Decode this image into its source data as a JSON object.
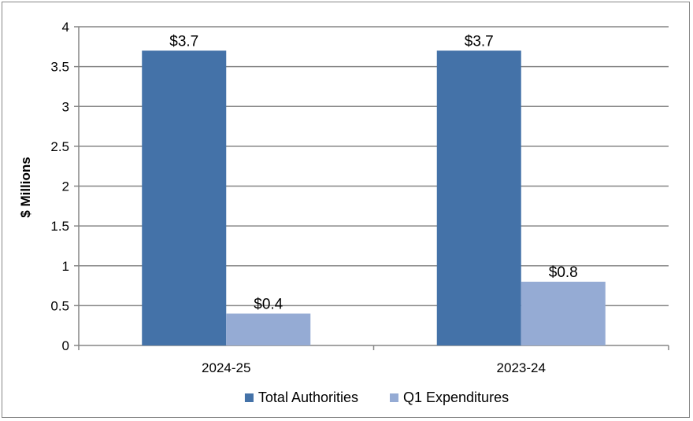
{
  "chart_data": {
    "type": "bar",
    "categories": [
      "2024-25",
      "2023-24"
    ],
    "series": [
      {
        "name": "Total Authorities",
        "values": [
          3.7,
          3.7
        ],
        "labels": [
          "$3.7",
          "$3.7"
        ],
        "color": "#4472A8"
      },
      {
        "name": "Q1 Expenditures",
        "values": [
          0.4,
          0.8
        ],
        "labels": [
          "$0.4",
          "$0.8"
        ],
        "color": "#95ABD4"
      }
    ],
    "title": "",
    "xlabel": "",
    "ylabel": "$ Millions",
    "ylim": [
      0,
      4
    ],
    "yticks": [
      0,
      0.5,
      1,
      1.5,
      2,
      2.5,
      3,
      3.5,
      4
    ],
    "ytick_labels": [
      "0",
      "0.5",
      "1",
      "1.5",
      "2",
      "2.5",
      "3",
      "3.5",
      "4"
    ],
    "grid": true,
    "legend_position": "bottom"
  }
}
